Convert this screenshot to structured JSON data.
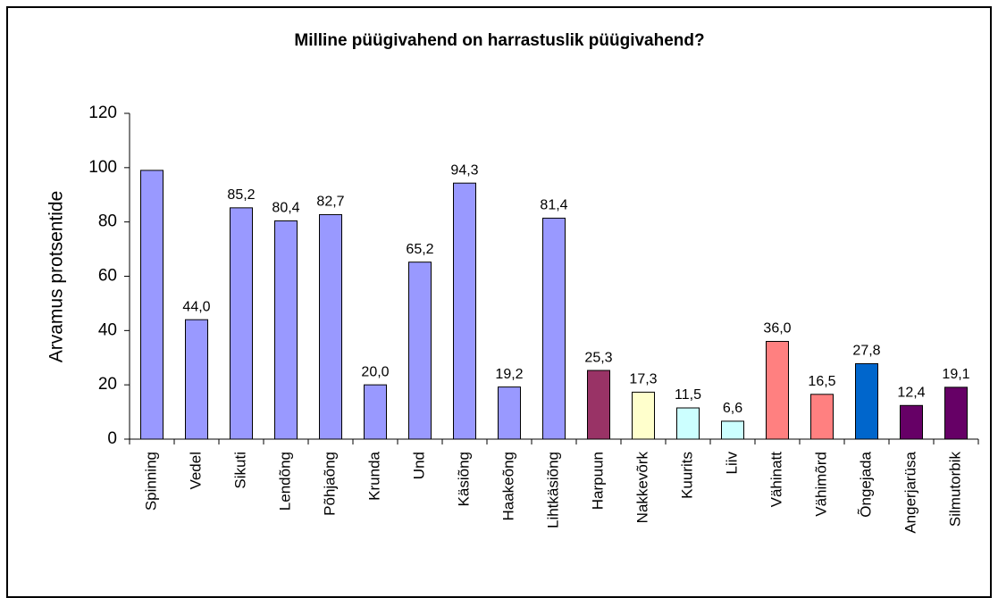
{
  "chart_data": {
    "type": "bar",
    "title": "Milline püügivahend on harrastuslik püügivahend?",
    "y_label": "Arvamus protsentide",
    "categories": [
      "Spinning",
      "Vedel",
      "Sikuti",
      "Lendõng",
      "Põhjaõng",
      "Krunda",
      "Und",
      "Käsiõng",
      "Haakeõng",
      "Lihtkäsiõng",
      "Harpuun",
      "Nakkevõrk",
      "Kuurits",
      "Liiv",
      "Vähinatt",
      "Vähimõrd",
      "Õngejada",
      "Angerjarüsa",
      "Silmutorbik"
    ],
    "values": [
      99,
      44.0,
      85.2,
      80.4,
      82.7,
      20.0,
      65.2,
      94.3,
      19.2,
      81.4,
      25.3,
      17.3,
      11.5,
      6.6,
      36.0,
      16.5,
      27.8,
      12.4,
      19.1
    ],
    "value_labels": [
      null,
      "44,0",
      "85,2",
      "80,4",
      "82,7",
      "20,0",
      "65,2",
      "94,3",
      "19,2",
      "81,4",
      "25,3",
      "17,3",
      "11,5",
      "6,6",
      "36,0",
      "16,5",
      "27,8",
      "12,4",
      "19,1"
    ],
    "colors": [
      "#9999ff",
      "#9999ff",
      "#9999ff",
      "#9999ff",
      "#9999ff",
      "#9999ff",
      "#9999ff",
      "#9999ff",
      "#9999ff",
      "#9999ff",
      "#993366",
      "#ffffcc",
      "#ccffff",
      "#ccffff",
      "#ff8080",
      "#ff8080",
      "#0066cc",
      "#660066",
      "#660066"
    ],
    "ylim": [
      0,
      120
    ],
    "yticks": [
      0,
      20,
      40,
      60,
      80,
      100,
      120
    ],
    "grid": false
  }
}
